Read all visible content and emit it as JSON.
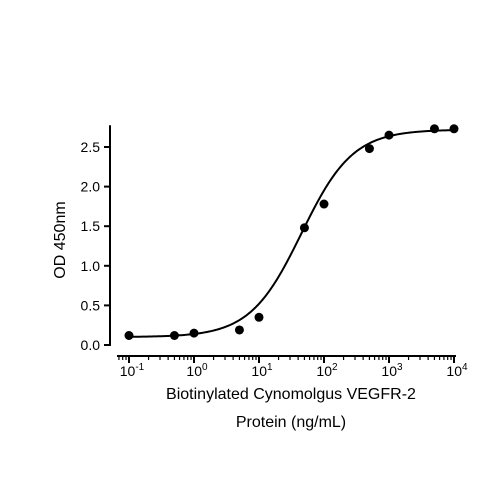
{
  "chart_data": {
    "type": "scatter",
    "xscale": "log",
    "xlabel_line1": "Biotinylated Cynomolgus VEGFR-2",
    "xlabel_line2": "Protein (ng/mL)",
    "ylabel": "OD 450nm",
    "xlim": [
      0.1,
      10000
    ],
    "ylim": [
      0,
      2.75
    ],
    "x_ticks": [
      {
        "base": "10",
        "exp": "-1"
      },
      {
        "base": "10",
        "exp": "0"
      },
      {
        "base": "10",
        "exp": "1"
      },
      {
        "base": "10",
        "exp": "2"
      },
      {
        "base": "10",
        "exp": "3"
      },
      {
        "base": "10",
        "exp": "4"
      }
    ],
    "y_ticks": [
      "0.0",
      "0.5",
      "1.0",
      "1.5",
      "2.0",
      "2.5"
    ],
    "points": [
      {
        "x": 0.1,
        "y": 0.12
      },
      {
        "x": 0.5,
        "y": 0.12
      },
      {
        "x": 1,
        "y": 0.15
      },
      {
        "x": 5,
        "y": 0.19
      },
      {
        "x": 10,
        "y": 0.35
      },
      {
        "x": 50,
        "y": 1.48
      },
      {
        "x": 100,
        "y": 1.78
      },
      {
        "x": 500,
        "y": 2.48
      },
      {
        "x": 1000,
        "y": 2.65
      },
      {
        "x": 5000,
        "y": 2.73
      },
      {
        "x": 10000,
        "y": 2.73
      }
    ],
    "fit": {
      "model": "4PL",
      "bottom": 0.1,
      "top": 2.72,
      "ec50": 45,
      "hill": 1.1
    },
    "grid": false,
    "legend": "none",
    "colors": {
      "marker": "#000000",
      "line": "#000000",
      "axis": "#000000"
    }
  }
}
